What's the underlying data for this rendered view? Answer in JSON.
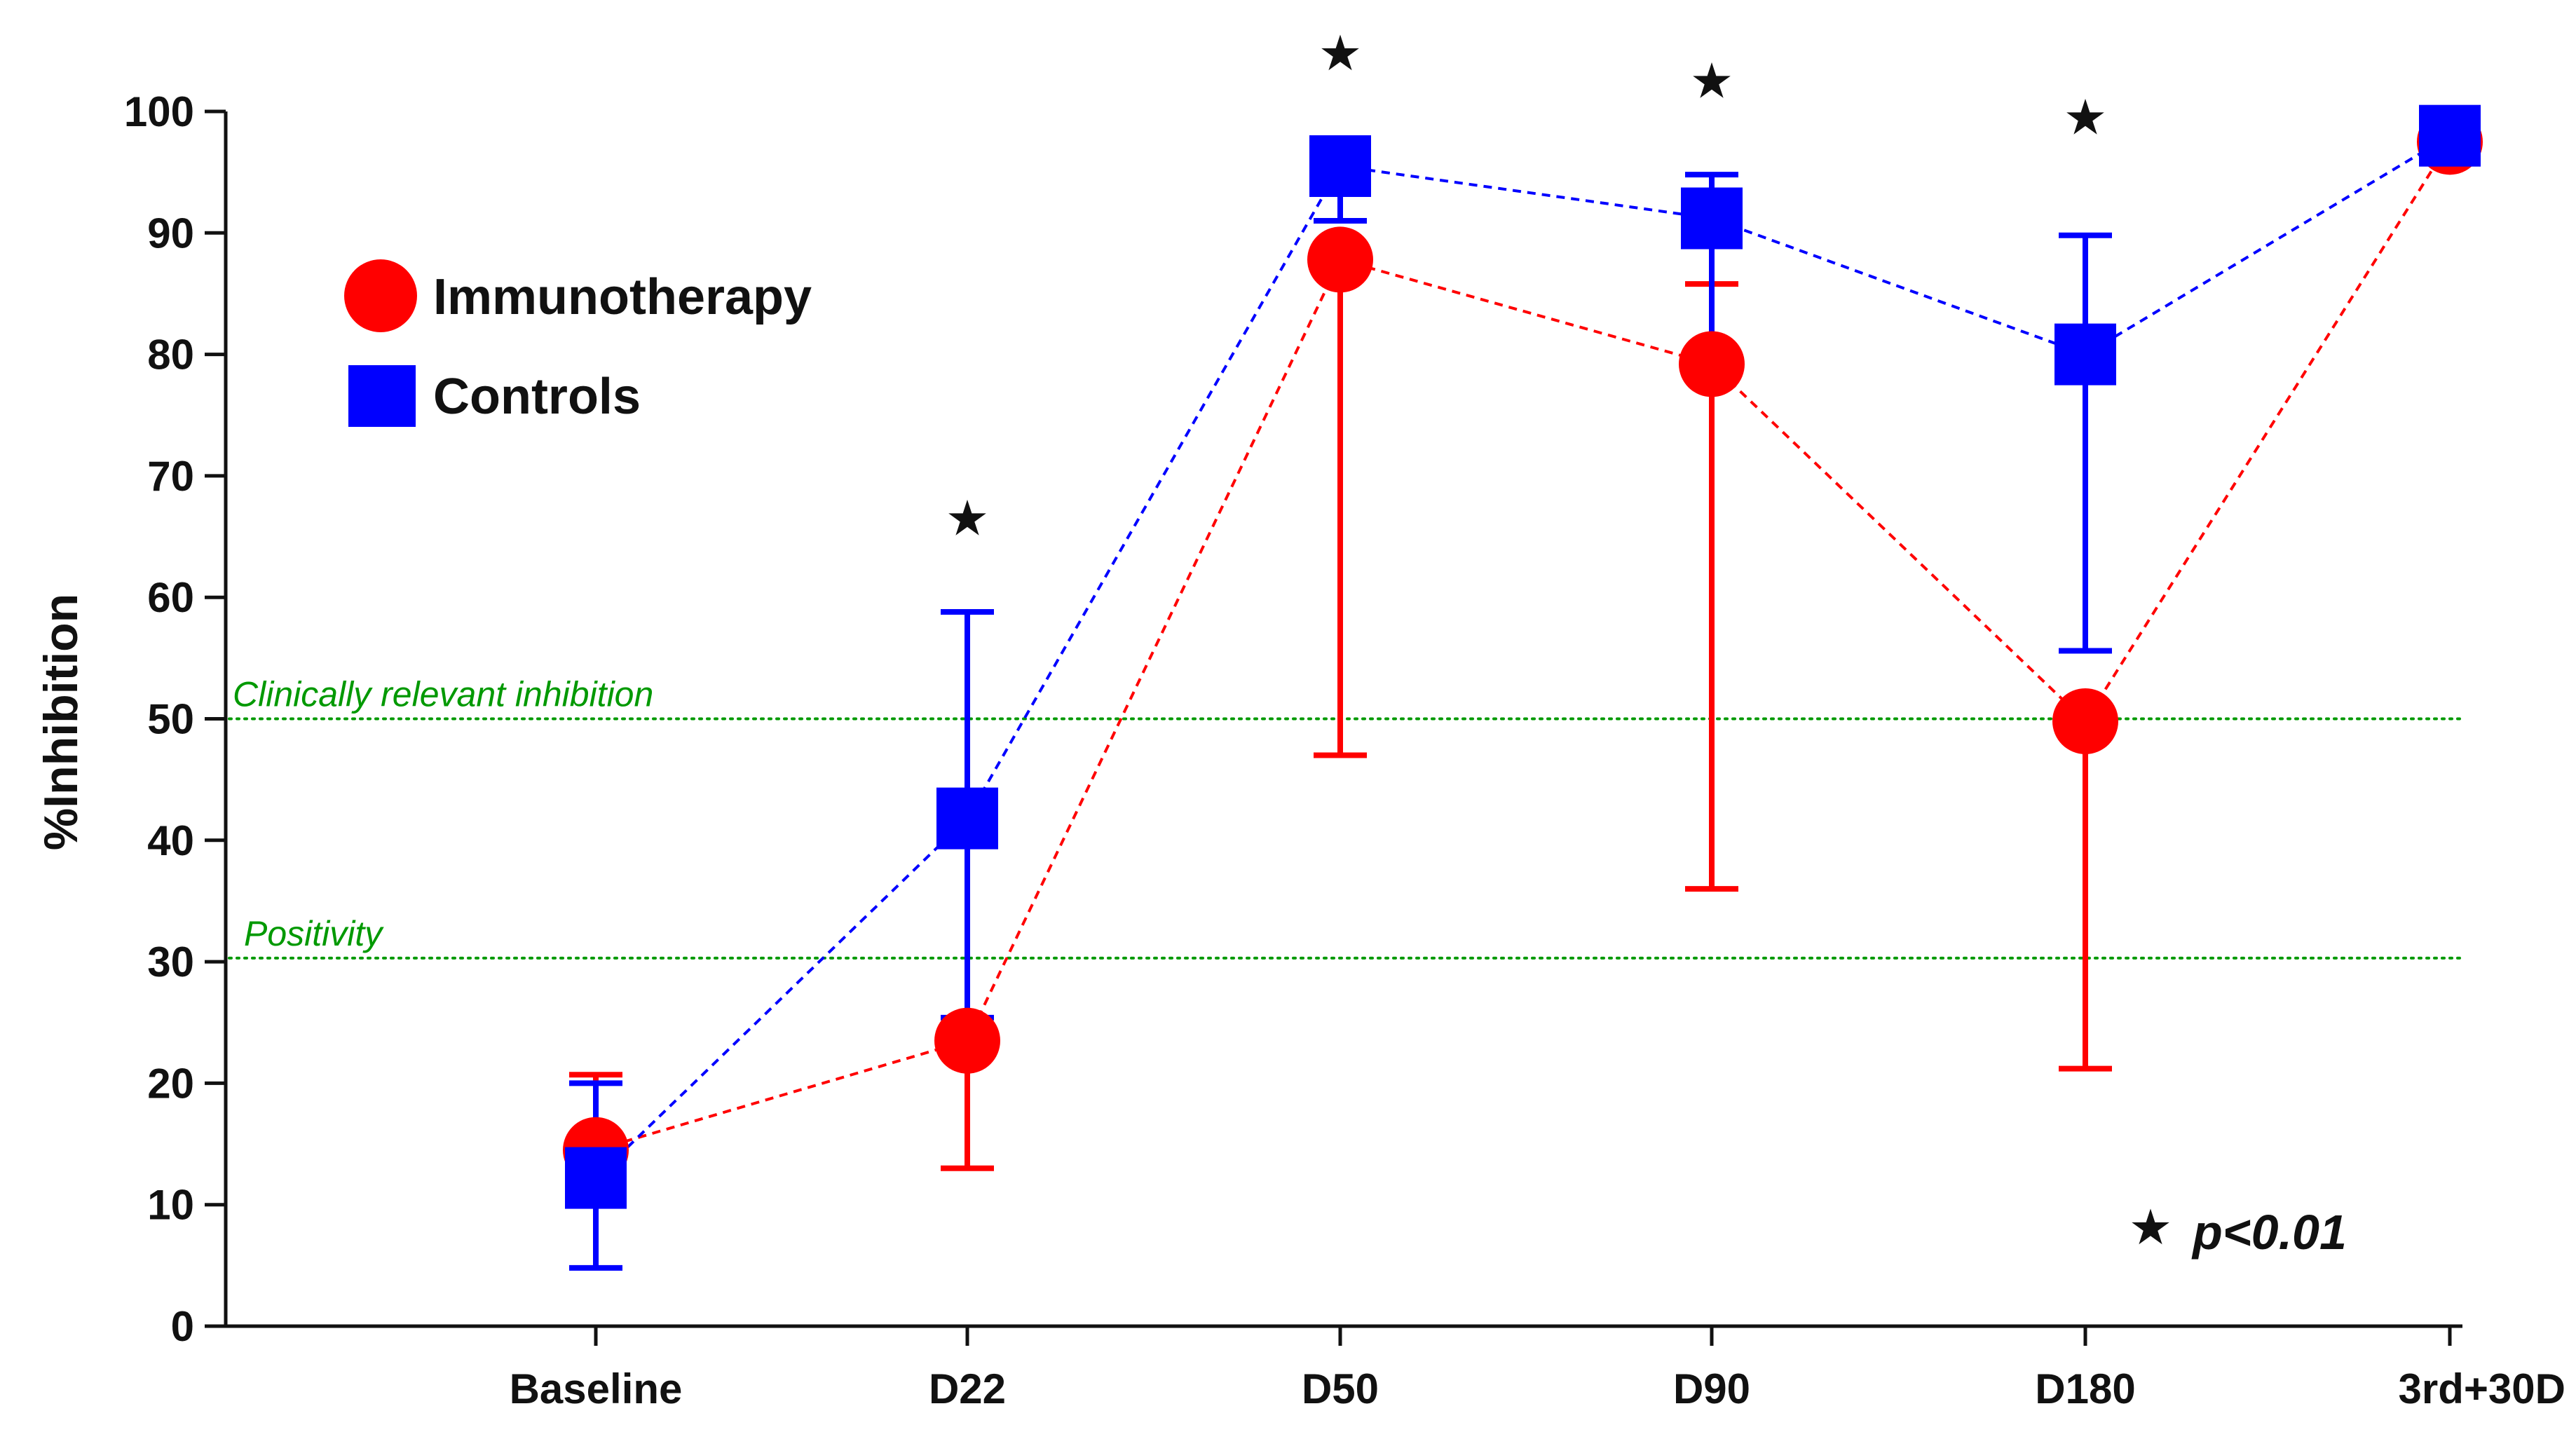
{
  "chart_data": {
    "type": "line",
    "title": "",
    "xlabel": "",
    "ylabel": "%Inhibition",
    "ylim": [
      0,
      100
    ],
    "yticks": [
      0,
      10,
      20,
      30,
      40,
      50,
      60,
      70,
      80,
      90,
      100
    ],
    "categories": [
      "Baseline",
      "D22",
      "D50",
      "D90",
      "D180",
      "3rd+30D"
    ],
    "series": [
      {
        "name": "Immunotherapy",
        "color": "#ff0000",
        "marker": "circle",
        "values": [
          14.5,
          23.5,
          87.8,
          79.2,
          49.8,
          97.5
        ],
        "upper": [
          20.7,
          null,
          null,
          85.8,
          null,
          null
        ],
        "lower": [
          null,
          13.0,
          47.0,
          36.0,
          21.2,
          null
        ]
      },
      {
        "name": "Controls",
        "color": "#0000ff",
        "marker": "square",
        "values": [
          12.2,
          41.8,
          95.5,
          91.2,
          80.0,
          98.0
        ],
        "upper": [
          20.0,
          58.8,
          null,
          94.8,
          89.8,
          null
        ],
        "lower": [
          4.8,
          25.4,
          91.0,
          80.0,
          55.6,
          null
        ]
      }
    ],
    "reference_lines": [
      {
        "label": "Clinically relevant inhibition",
        "value": 50,
        "color": "#009900"
      },
      {
        "label": "Positivity",
        "value": 30.3,
        "color": "#009900"
      }
    ],
    "significance_markers": [
      {
        "category": "D22",
        "value": 66.5
      },
      {
        "category": "D50",
        "value": 104.8
      },
      {
        "category": "D90",
        "value": 102.5
      },
      {
        "category": "D180",
        "value": 99.5
      }
    ],
    "significance_symbol": "★",
    "annotation": "p<0.01",
    "legend_position": "top-left"
  }
}
